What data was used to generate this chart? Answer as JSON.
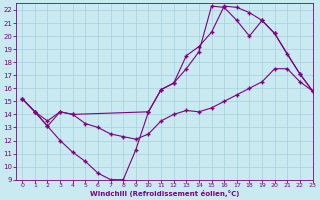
{
  "xlabel": "Windchill (Refroidissement éolien,°C)",
  "bg_color": "#c8eaf0",
  "line_color": "#800080",
  "xlim": [
    -0.5,
    23
  ],
  "ylim": [
    9,
    22.5
  ],
  "yticks": [
    9,
    10,
    11,
    12,
    13,
    14,
    15,
    16,
    17,
    18,
    19,
    20,
    21,
    22
  ],
  "xticks": [
    0,
    1,
    2,
    3,
    4,
    5,
    6,
    7,
    8,
    9,
    10,
    11,
    12,
    13,
    14,
    15,
    16,
    17,
    18,
    19,
    20,
    21,
    22,
    23
  ],
  "line1_x": [
    0,
    1,
    2,
    3,
    4,
    5,
    6,
    7,
    8,
    9,
    10,
    11,
    12,
    13,
    14,
    15,
    16,
    17,
    18,
    19,
    20,
    21,
    22,
    23
  ],
  "line1_y": [
    15.2,
    14.2,
    13.1,
    12.0,
    11.1,
    10.4,
    9.5,
    9.0,
    9.0,
    11.3,
    14.2,
    15.9,
    16.4,
    18.5,
    19.2,
    20.3,
    22.3,
    22.2,
    21.8,
    21.2,
    20.2,
    18.6,
    17.1,
    15.8
  ],
  "line2_x": [
    0,
    1,
    2,
    3,
    4,
    5,
    6,
    7,
    8,
    9,
    10,
    11,
    12,
    13,
    14,
    15,
    16,
    17,
    18,
    19,
    20,
    21,
    22,
    23
  ],
  "line2_y": [
    15.2,
    14.2,
    13.5,
    14.2,
    14.0,
    13.3,
    13.0,
    12.5,
    12.3,
    12.1,
    12.5,
    13.5,
    14.0,
    14.3,
    14.2,
    14.5,
    15.0,
    15.5,
    16.0,
    16.5,
    17.5,
    17.5,
    16.5,
    15.8
  ],
  "line3_x": [
    0,
    1,
    2,
    3,
    4,
    10,
    11,
    12,
    13,
    14,
    15,
    16,
    17,
    18,
    19,
    20,
    22,
    23
  ],
  "line3_y": [
    15.2,
    14.2,
    13.1,
    14.2,
    14.0,
    14.2,
    15.9,
    16.4,
    17.5,
    18.8,
    22.3,
    22.2,
    21.2,
    20.0,
    21.2,
    20.2,
    17.1,
    15.8
  ]
}
